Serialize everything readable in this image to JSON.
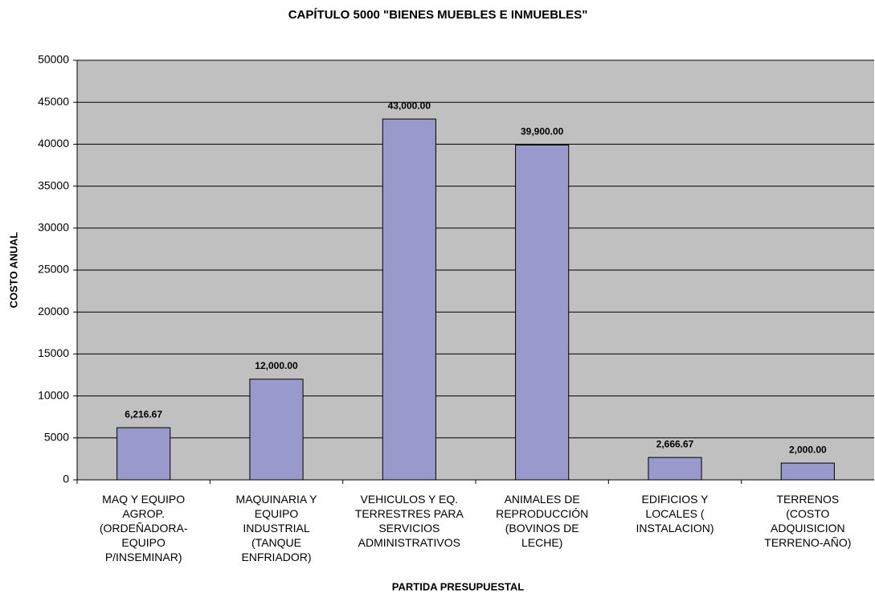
{
  "chart_data": {
    "type": "bar",
    "title": "CAPÍTULO 5000 \"BIENES MUEBLES E INMUEBLES\"",
    "x_label": "PARTIDA PRESUPUESTAL",
    "y_label": "COSTO ANUAL",
    "categories": [
      "MAQ Y EQUIPO\nAGROP.\n(ORDEÑADORA-\nEQUIPO\nP/INSEMINAR)",
      "MAQUINARIA Y\nEQUIPO\nINDUSTRIAL\n(TANQUE\nENFRIADOR)",
      "VEHICULOS Y EQ.\nTERRESTRES PARA\nSERVICIOS\nADMINISTRATIVOS",
      "ANIMALES DE\nREPRODUCCIÓN\n(BOVINOS DE\nLECHE)",
      "EDIFICIOS Y\nLOCALES (\nINSTALACION)",
      "TERRENOS\n(COSTO\nADQUISICION\nTERRENO-AÑO)"
    ],
    "values": [
      6216.67,
      12000,
      43000,
      39900,
      2666.67,
      2000
    ],
    "value_labels": [
      "6,216.67",
      "12,000.00",
      "43,000.00",
      "39,900.00",
      "2,666.67",
      "2,000.00"
    ],
    "color": "#9999cc",
    "ylim": [
      0,
      50000
    ],
    "yticks": [
      0,
      5000,
      10000,
      15000,
      20000,
      25000,
      30000,
      35000,
      40000,
      45000,
      50000
    ],
    "grid": true
  }
}
